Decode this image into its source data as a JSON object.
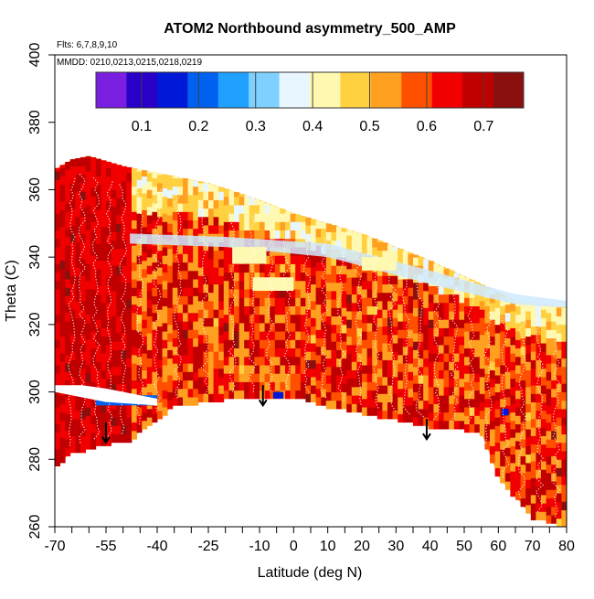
{
  "chart_data": {
    "type": "heatmap",
    "title": "ATOM2 Northbound asymmetry_500_AMP",
    "annotations": {
      "flights": "Flts: 6,7,8,9,10",
      "dates": "MMDD: 0210,0213,0215,0218,0219"
    },
    "xlabel": "Latitude (deg N)",
    "ylabel": "Theta (C)",
    "xlim": [
      -70,
      80
    ],
    "ylim": [
      260,
      400
    ],
    "x_ticks": [
      -70,
      -55,
      -40,
      -25,
      -10,
      0,
      10,
      20,
      30,
      40,
      50,
      60,
      70,
      80
    ],
    "x_tick_labels": [
      "-70",
      "-55",
      "-40",
      "-25",
      "-10",
      "0",
      "10",
      "20",
      "30",
      "40",
      "50",
      "60",
      "70",
      "80"
    ],
    "x_minor_ticks": [
      -65,
      -60,
      -50,
      -45,
      -35,
      -30,
      -20,
      -15,
      -5,
      5,
      15,
      25,
      35,
      45,
      55,
      65,
      75
    ],
    "y_ticks": [
      260,
      280,
      300,
      320,
      340,
      360,
      380,
      400
    ],
    "y_tick_labels": [
      "260",
      "280",
      "300",
      "320",
      "340",
      "360",
      "380",
      "400"
    ],
    "colorbar": {
      "range": [
        0.02,
        0.77
      ],
      "ticks": [
        0.1,
        0.2,
        0.3,
        0.4,
        0.5,
        0.6,
        0.7
      ],
      "tick_labels": [
        "0.1",
        "0.2",
        "0.3",
        "0.4",
        "0.5",
        "0.6",
        "0.7"
      ],
      "colors": [
        "#7a1fe0",
        "#2a00c8",
        "#0018d8",
        "#0060f0",
        "#20a0ff",
        "#80d0ff",
        "#e8f6ff",
        "#fff8b0",
        "#ffd040",
        "#ffa020",
        "#ff5000",
        "#f00000",
        "#c00000",
        "#8a1010"
      ]
    },
    "domain_outline": {
      "top": [
        [
          -70,
          366
        ],
        [
          -65,
          369
        ],
        [
          -60,
          370
        ],
        [
          -50,
          367
        ],
        [
          -40,
          365
        ],
        [
          -25,
          362
        ],
        [
          -10,
          357
        ],
        [
          0,
          353
        ],
        [
          20,
          347
        ],
        [
          40,
          339
        ],
        [
          55,
          332
        ],
        [
          65,
          327
        ],
        [
          80,
          325
        ]
      ],
      "bottom": [
        [
          -70,
          278
        ],
        [
          -65,
          282
        ],
        [
          -58,
          284
        ],
        [
          -48,
          286
        ],
        [
          -35,
          296
        ],
        [
          -20,
          298
        ],
        [
          -10,
          298
        ],
        [
          0,
          299
        ],
        [
          10,
          296
        ],
        [
          20,
          294
        ],
        [
          30,
          292
        ],
        [
          40,
          290
        ],
        [
          50,
          289
        ],
        [
          55,
          288
        ],
        [
          60,
          275
        ],
        [
          70,
          263
        ],
        [
          80,
          260
        ]
      ]
    },
    "hole": [
      [
        -70,
        302
      ],
      [
        -62,
        302
      ],
      [
        -55,
        301
      ],
      [
        -45,
        299
      ],
      [
        -40,
        298
      ],
      [
        -40,
        296
      ],
      [
        -55,
        297
      ],
      [
        -70,
        300
      ]
    ],
    "blue_band": [
      [
        -48,
        347
      ],
      [
        -20,
        346
      ],
      [
        10,
        344
      ],
      [
        40,
        336
      ],
      [
        65,
        329
      ],
      [
        80,
        327
      ],
      [
        80,
        325
      ],
      [
        65,
        326
      ],
      [
        40,
        332
      ],
      [
        10,
        340
      ],
      [
        -20,
        343
      ],
      [
        -48,
        344
      ]
    ],
    "blue_patches": [
      {
        "x": [
          -58,
          -40
        ],
        "y": [
          296,
          299
        ],
        "value": 0.2
      },
      {
        "x": [
          -18,
          -8
        ],
        "y": [
          338,
          343
        ],
        "value": 0.4
      },
      {
        "x": [
          -12,
          0
        ],
        "y": [
          330,
          334
        ],
        "value": 0.4
      },
      {
        "x": [
          20,
          30
        ],
        "y": [
          336,
          340
        ],
        "value": 0.4
      },
      {
        "x": [
          -6,
          -3
        ],
        "y": [
          298,
          300
        ],
        "value": 0.15
      },
      {
        "x": [
          61,
          63
        ],
        "y": [
          293,
          295
        ],
        "value": 0.15
      }
    ],
    "markers": [
      {
        "x": -55,
        "y": 291,
        "type": "arrow-down"
      },
      {
        "x": -9,
        "y": 302,
        "type": "arrow-down"
      },
      {
        "x": 39,
        "y": 292,
        "type": "arrow-down"
      }
    ]
  }
}
